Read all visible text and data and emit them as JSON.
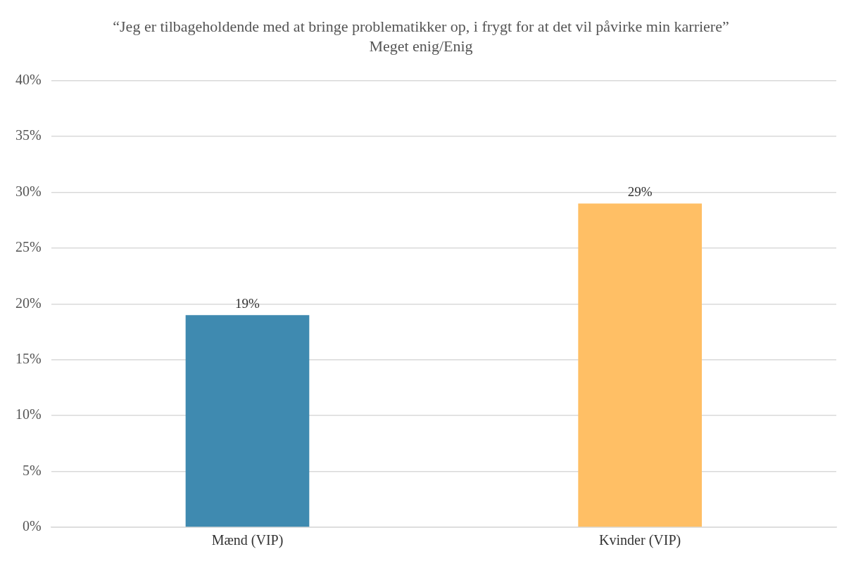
{
  "chart_data": {
    "type": "bar",
    "title": "“Jeg er tilbageholdende med at bringe problematikker op, i frygt for at det vil påvirke min karriere”",
    "subtitle": "Meget enig/Enig",
    "categories": [
      "Mænd (VIP)",
      "Kvinder (VIP)"
    ],
    "values": [
      19,
      29
    ],
    "colors": [
      "#3f8ab0",
      "#ffbf65"
    ],
    "value_labels": [
      "19%",
      "29%"
    ],
    "ylim": [
      0,
      40
    ],
    "yticks": [
      {
        "value": 0,
        "label": "0%"
      },
      {
        "value": 5,
        "label": "5%"
      },
      {
        "value": 10,
        "label": "10%"
      },
      {
        "value": 15,
        "label": "15%"
      },
      {
        "value": 20,
        "label": "20%"
      },
      {
        "value": 25,
        "label": "25%"
      },
      {
        "value": 30,
        "label": "30%"
      },
      {
        "value": 35,
        "label": "35%"
      },
      {
        "value": 40,
        "label": "40%"
      }
    ],
    "grid": "y",
    "legend": false
  }
}
